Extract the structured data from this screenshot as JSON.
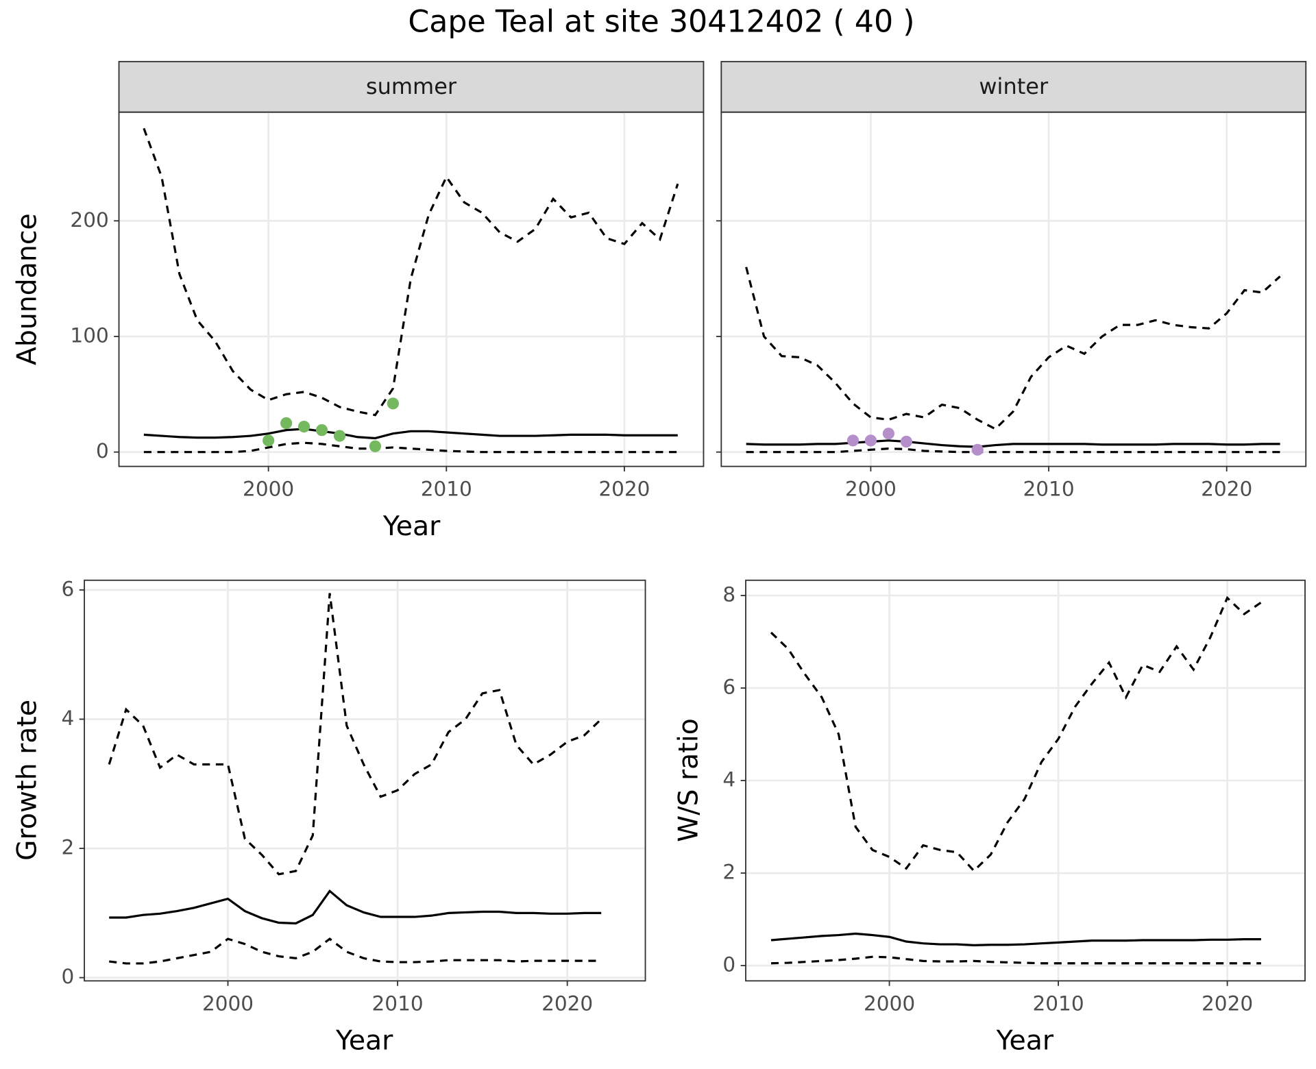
{
  "title": "Cape Teal at site 30412402 ( 40 )",
  "chart_data": [
    {
      "type": "line",
      "facet": "summer",
      "ylabel": "Abundance",
      "xlabel": "Year",
      "x": [
        1993,
        1994,
        1995,
        1996,
        1997,
        1998,
        1999,
        2000,
        2001,
        2002,
        2003,
        2004,
        2005,
        2006,
        2007,
        2008,
        2009,
        2010,
        2011,
        2012,
        2013,
        2014,
        2015,
        2016,
        2017,
        2018,
        2019,
        2020,
        2021,
        2022,
        2023
      ],
      "xlim": [
        1991.6,
        2024.45
      ],
      "xticks": [
        2000,
        2010,
        2020
      ],
      "ylim": [
        -12.4,
        294
      ],
      "yticks": [
        0,
        100,
        200
      ],
      "ytick_labels": true,
      "grid": true,
      "series": [
        {
          "style": "dashed",
          "color": "#000000",
          "values": [
            280,
            238,
            154,
            114,
            96,
            70,
            54,
            45,
            50,
            52,
            47,
            39,
            35,
            32,
            55,
            150,
            205,
            238,
            216,
            207,
            190,
            182,
            193,
            219,
            203,
            207,
            185,
            180,
            198,
            184,
            232
          ]
        },
        {
          "style": "solid",
          "color": "#000000",
          "values": [
            15,
            14,
            13,
            12.5,
            12.5,
            13,
            14,
            16,
            19,
            20,
            18,
            16,
            13,
            12,
            16,
            18,
            18,
            17,
            16,
            15,
            14,
            14,
            14,
            14.5,
            15,
            15,
            15,
            14.5,
            14.5,
            14.5,
            14.5
          ]
        },
        {
          "style": "dashed",
          "color": "#000000",
          "values": [
            0,
            0,
            0,
            0,
            0,
            0,
            1,
            4,
            7,
            8,
            7,
            5,
            3,
            3,
            4,
            3,
            2,
            1,
            0.5,
            0,
            0,
            0,
            0,
            0,
            0,
            0,
            0,
            0,
            0,
            0,
            0
          ]
        }
      ],
      "points": {
        "color": "#74b95e",
        "x": [
          2000,
          2001,
          2002,
          2003,
          2004,
          2006,
          2007
        ],
        "values": [
          10,
          25,
          22,
          19,
          14,
          5,
          42
        ]
      }
    },
    {
      "type": "line",
      "facet": "winter",
      "x": [
        1993,
        1994,
        1995,
        1996,
        1997,
        1998,
        1999,
        2000,
        2001,
        2002,
        2003,
        2004,
        2005,
        2006,
        2007,
        2008,
        2009,
        2010,
        2011,
        2012,
        2013,
        2014,
        2015,
        2016,
        2017,
        2018,
        2019,
        2020,
        2021,
        2022,
        2023
      ],
      "xlim": [
        1991.6,
        2024.45
      ],
      "xticks": [
        2000,
        2010,
        2020
      ],
      "ylim": [
        -12.4,
        294
      ],
      "yticks": [
        0,
        100,
        200
      ],
      "ytick_labels": false,
      "grid": true,
      "series": [
        {
          "style": "dashed",
          "color": "#000000",
          "values": [
            160,
            100,
            83,
            82,
            75,
            60,
            42,
            30,
            28,
            33,
            30,
            41,
            38,
            28,
            20,
            35,
            65,
            82,
            92,
            85,
            100,
            110,
            110,
            114,
            110,
            108,
            107,
            120,
            140,
            138,
            152
          ]
        },
        {
          "style": "solid",
          "color": "#000000",
          "values": [
            7,
            6.5,
            6.5,
            6.5,
            7,
            7,
            8,
            9,
            10,
            9,
            7.5,
            6,
            5,
            4.5,
            6,
            7,
            7,
            7,
            7,
            7,
            6.5,
            6.5,
            6.5,
            6.5,
            7,
            7,
            7,
            6.5,
            6.5,
            7,
            7
          ]
        },
        {
          "style": "dashed",
          "color": "#000000",
          "values": [
            0,
            0,
            0,
            0,
            0,
            0,
            1,
            2,
            3,
            2.5,
            1,
            0.5,
            0,
            0,
            0,
            0,
            0,
            0,
            0,
            0,
            0,
            0,
            0,
            0,
            0,
            0,
            0,
            0,
            0,
            0,
            0
          ]
        }
      ],
      "points": {
        "color": "#b48fca",
        "x": [
          1999,
          2000,
          2001,
          2002,
          2006
        ],
        "values": [
          10,
          10,
          16,
          9,
          2
        ]
      }
    },
    {
      "type": "line",
      "ylabel": "Growth rate",
      "xlabel": "Year",
      "x": [
        1993,
        1994,
        1995,
        1996,
        1997,
        1998,
        1999,
        2000,
        2001,
        2002,
        2003,
        2004,
        2005,
        2006,
        2007,
        2008,
        2009,
        2010,
        2011,
        2012,
        2013,
        2014,
        2015,
        2016,
        2017,
        2018,
        2019,
        2020,
        2021,
        2022
      ],
      "xlim": [
        1991.54,
        2024.6
      ],
      "xticks": [
        2000,
        2010,
        2020
      ],
      "ylim": [
        -0.05,
        6.15
      ],
      "yticks": [
        0,
        2,
        4,
        6
      ],
      "ytick_labels": true,
      "grid": true,
      "series": [
        {
          "style": "dashed",
          "color": "#000000",
          "values": [
            3.3,
            4.15,
            3.9,
            3.25,
            3.45,
            3.3,
            3.3,
            3.3,
            2.15,
            1.9,
            1.6,
            1.65,
            2.2,
            5.95,
            3.9,
            3.3,
            2.8,
            2.9,
            3.15,
            3.3,
            3.8,
            4.0,
            4.4,
            4.45,
            3.6,
            3.3,
            3.45,
            3.65,
            3.75,
            4.0
          ]
        },
        {
          "style": "solid",
          "color": "#000000",
          "values": [
            0.93,
            0.93,
            0.97,
            0.99,
            1.03,
            1.08,
            1.15,
            1.22,
            1.03,
            0.92,
            0.85,
            0.84,
            0.97,
            1.34,
            1.12,
            1.01,
            0.94,
            0.94,
            0.94,
            0.96,
            1.0,
            1.01,
            1.02,
            1.02,
            1.0,
            1.0,
            0.99,
            0.99,
            1.0,
            1.0
          ]
        },
        {
          "style": "dashed",
          "color": "#000000",
          "values": [
            0.25,
            0.22,
            0.22,
            0.25,
            0.3,
            0.35,
            0.4,
            0.6,
            0.52,
            0.4,
            0.33,
            0.3,
            0.4,
            0.6,
            0.4,
            0.3,
            0.25,
            0.24,
            0.24,
            0.25,
            0.27,
            0.27,
            0.27,
            0.27,
            0.25,
            0.26,
            0.26,
            0.26,
            0.26,
            0.26
          ]
        }
      ]
    },
    {
      "type": "line",
      "ylabel": "W/S ratio",
      "xlabel": "Year",
      "x": [
        1993,
        1994,
        1995,
        1996,
        1997,
        1998,
        1999,
        2000,
        2001,
        2002,
        2003,
        2004,
        2005,
        2006,
        2007,
        2008,
        2009,
        2010,
        2011,
        2012,
        2013,
        2014,
        2015,
        2016,
        2017,
        2018,
        2019,
        2020,
        2021,
        2022
      ],
      "xlim": [
        1991.5,
        2024.6
      ],
      "xticks": [
        2000,
        2010,
        2020
      ],
      "ylim": [
        -0.33,
        8.33
      ],
      "yticks": [
        0,
        2,
        4,
        6,
        8
      ],
      "ytick_labels": true,
      "grid": true,
      "series": [
        {
          "style": "dashed",
          "color": "#000000",
          "values": [
            7.2,
            6.85,
            6.3,
            5.8,
            5.0,
            3.0,
            2.5,
            2.35,
            2.1,
            2.6,
            2.5,
            2.45,
            2.05,
            2.4,
            3.1,
            3.6,
            4.4,
            4.9,
            5.6,
            6.1,
            6.55,
            5.8,
            6.5,
            6.35,
            6.9,
            6.4,
            7.1,
            7.95,
            7.6,
            7.85
          ]
        },
        {
          "style": "solid",
          "color": "#000000",
          "values": [
            0.55,
            0.58,
            0.61,
            0.64,
            0.66,
            0.69,
            0.66,
            0.62,
            0.52,
            0.48,
            0.46,
            0.46,
            0.44,
            0.45,
            0.45,
            0.46,
            0.48,
            0.5,
            0.52,
            0.54,
            0.54,
            0.54,
            0.55,
            0.55,
            0.55,
            0.55,
            0.56,
            0.56,
            0.57,
            0.57
          ]
        },
        {
          "style": "dashed",
          "color": "#000000",
          "values": [
            0.05,
            0.06,
            0.08,
            0.1,
            0.12,
            0.15,
            0.19,
            0.18,
            0.14,
            0.1,
            0.09,
            0.09,
            0.1,
            0.08,
            0.07,
            0.06,
            0.05,
            0.05,
            0.05,
            0.05,
            0.05,
            0.05,
            0.05,
            0.05,
            0.05,
            0.05,
            0.05,
            0.05,
            0.05,
            0.05
          ]
        }
      ]
    }
  ]
}
